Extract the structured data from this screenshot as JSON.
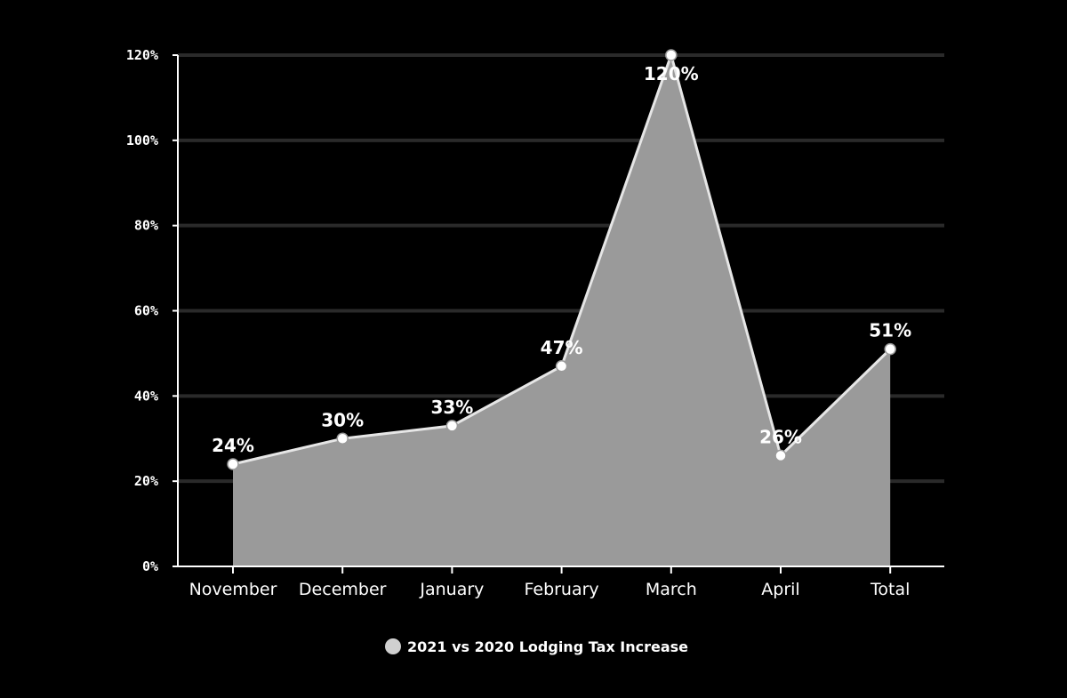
{
  "chart_data": {
    "type": "area",
    "categories": [
      "November",
      "December",
      "January",
      "February",
      "March",
      "April",
      "Total"
    ],
    "series": [
      {
        "name": "2021 vs 2020 Lodging Tax Increase",
        "values": [
          24,
          30,
          33,
          47,
          120,
          26,
          51
        ],
        "data_labels": [
          "24%",
          "30%",
          "33%",
          "47%",
          "120%",
          "26%",
          "51%"
        ]
      }
    ],
    "ylim": [
      0,
      120
    ],
    "y_ticks": [
      0,
      20,
      40,
      60,
      80,
      100,
      120
    ],
    "y_tick_labels": [
      "0%",
      "20%",
      "40%",
      "60%",
      "80%",
      "100%",
      "120%"
    ],
    "grid": true,
    "legend_position": "bottom-center",
    "colors": {
      "background": "#000000",
      "area_fill": "#9a9a9a",
      "line": "#e6e6e6",
      "marker": "#ffffff",
      "grid": "#2a2a2a",
      "axis": "#ffffff",
      "legend_marker": "#d0d0d0"
    }
  }
}
